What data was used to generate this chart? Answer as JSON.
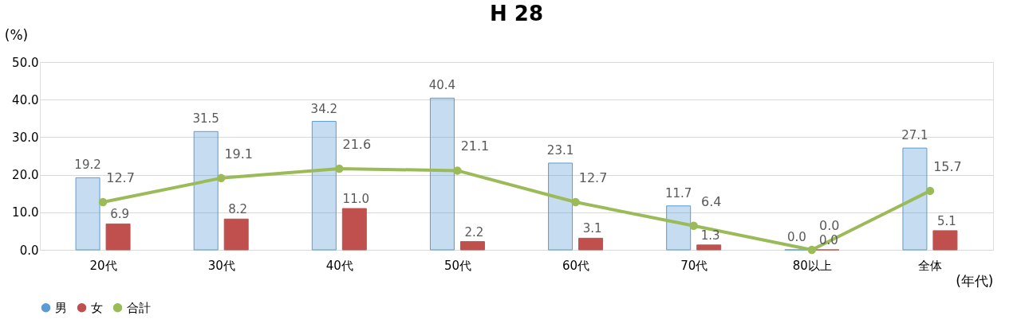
{
  "chart_data": {
    "type": "bar",
    "title": "H 28",
    "ylabel": "(%)",
    "xlabel": "(年代)",
    "categories": [
      "20代",
      "30代",
      "40代",
      "50代",
      "60代",
      "70代",
      "80以上",
      "全体"
    ],
    "series": [
      {
        "name": "男",
        "color": "#5b9bd5",
        "values": [
          19.2,
          31.5,
          34.2,
          40.4,
          23.1,
          11.7,
          0.0,
          27.1
        ],
        "value_labels": [
          "19.2",
          "31.5",
          "34.2",
          "40.4",
          "23.1",
          "11.7",
          "0.0",
          "27.1"
        ]
      },
      {
        "name": "女",
        "color": "#c0504d",
        "values": [
          6.9,
          8.2,
          11.0,
          2.2,
          3.1,
          1.3,
          0.0,
          5.1
        ],
        "value_labels": [
          "6.9",
          "8.2",
          "11.0",
          "2.2",
          "3.1",
          "1.3",
          "0.0",
          "5.1"
        ]
      },
      {
        "name": "合計",
        "type": "line",
        "color": "#9bbb59",
        "values": [
          12.7,
          19.1,
          21.6,
          21.1,
          12.7,
          6.4,
          0.0,
          15.7
        ],
        "value_labels": [
          "12.7",
          "19.1",
          "21.6",
          "21.1",
          "12.7",
          "6.4",
          "0.0",
          "15.7"
        ]
      }
    ],
    "ylim": [
      0,
      50
    ],
    "yticks": [
      {
        "value": 0,
        "label": "0.0"
      },
      {
        "value": 10,
        "label": "10.0"
      },
      {
        "value": 20,
        "label": "20.0"
      },
      {
        "value": 30,
        "label": "30.0"
      },
      {
        "value": 40,
        "label": "40.0"
      },
      {
        "value": 50,
        "label": "50.0"
      }
    ],
    "grid": "y",
    "legend": "bottom",
    "marker": "circle"
  }
}
